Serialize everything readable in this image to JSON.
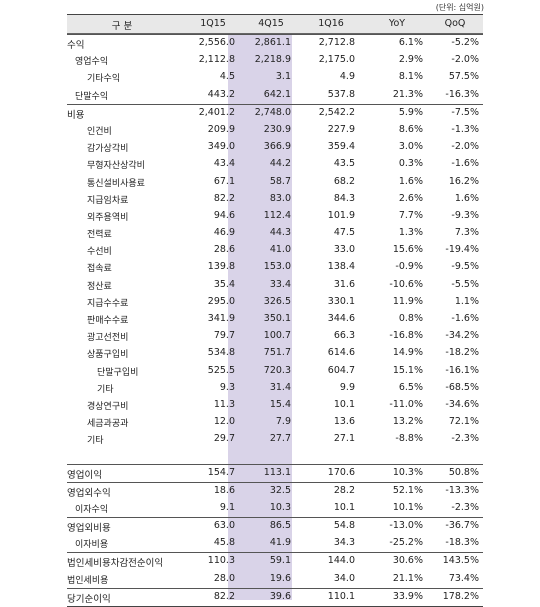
{
  "unit_label": "(단위: 십억원)",
  "headers": [
    "구 분",
    "1Q15",
    "4Q15",
    "1Q16",
    "YoY",
    "QoQ"
  ],
  "rows": [
    {
      "label": "수익",
      "level": 0,
      "main": true,
      "values": [
        "2,556.0",
        "2,861.1",
        "2,712.8",
        "6.1%",
        "-5.2%"
      ]
    },
    {
      "label": "영업수익",
      "level": 1,
      "values": [
        "2,112.8",
        "2,218.9",
        "2,175.0",
        "2.9%",
        "-2.0%"
      ]
    },
    {
      "label": "기타수익",
      "level": 2,
      "values": [
        "4.5",
        "3.1",
        "4.9",
        "8.1%",
        "57.5%"
      ]
    },
    {
      "label": "단말수익",
      "level": 1,
      "values": [
        "443.2",
        "642.1",
        "537.8",
        "21.3%",
        "-16.3%"
      ]
    },
    {
      "label": "비용",
      "level": 0,
      "main": true,
      "values": [
        "2,401.2",
        "2,748.0",
        "2,542.2",
        "5.9%",
        "-7.5%"
      ]
    },
    {
      "label": "인건비",
      "level": 2,
      "values": [
        "209.9",
        "230.9",
        "227.9",
        "8.6%",
        "-1.3%"
      ]
    },
    {
      "label": "감가상각비",
      "level": 2,
      "values": [
        "349.0",
        "366.9",
        "359.4",
        "3.0%",
        "-2.0%"
      ]
    },
    {
      "label": "무형자산상각비",
      "level": 2,
      "values": [
        "43.4",
        "44.2",
        "43.5",
        "0.3%",
        "-1.6%"
      ]
    },
    {
      "label": "통신설비사용료",
      "level": 2,
      "values": [
        "67.1",
        "58.7",
        "68.2",
        "1.6%",
        "16.2%"
      ]
    },
    {
      "label": "지급임차료",
      "level": 2,
      "values": [
        "82.2",
        "83.0",
        "84.3",
        "2.6%",
        "1.6%"
      ]
    },
    {
      "label": "외주용역비",
      "level": 2,
      "values": [
        "94.6",
        "112.4",
        "101.9",
        "7.7%",
        "-9.3%"
      ]
    },
    {
      "label": "전력료",
      "level": 2,
      "values": [
        "46.9",
        "44.3",
        "47.5",
        "1.3%",
        "7.3%"
      ]
    },
    {
      "label": "수선비",
      "level": 2,
      "values": [
        "28.6",
        "41.0",
        "33.0",
        "15.6%",
        "-19.4%"
      ]
    },
    {
      "label": "접속료",
      "level": 2,
      "values": [
        "139.8",
        "153.0",
        "138.4",
        "-0.9%",
        "-9.5%"
      ]
    },
    {
      "label": "정산료",
      "level": 2,
      "values": [
        "35.4",
        "33.4",
        "31.6",
        "-10.6%",
        "-5.5%"
      ]
    },
    {
      "label": "지급수수료",
      "level": 2,
      "values": [
        "295.0",
        "326.5",
        "330.1",
        "11.9%",
        "1.1%"
      ]
    },
    {
      "label": "판매수수료",
      "level": 2,
      "values": [
        "341.9",
        "350.1",
        "344.6",
        "0.8%",
        "-1.6%"
      ]
    },
    {
      "label": "광고선전비",
      "level": 2,
      "values": [
        "79.7",
        "100.7",
        "66.3",
        "-16.8%",
        "-34.2%"
      ]
    },
    {
      "label": "상품구입비",
      "level": 2,
      "values": [
        "534.8",
        "751.7",
        "614.6",
        "14.9%",
        "-18.2%"
      ]
    },
    {
      "label": "단말구입비",
      "level": 3,
      "values": [
        "525.5",
        "720.3",
        "604.7",
        "15.1%",
        "-16.1%"
      ]
    },
    {
      "label": "기타",
      "level": 3,
      "values": [
        "9.3",
        "31.4",
        "9.9",
        "6.5%",
        "-68.5%"
      ]
    },
    {
      "label": "경상연구비",
      "level": 2,
      "values": [
        "11.3",
        "15.4",
        "10.1",
        "-11.0%",
        "-34.6%"
      ]
    },
    {
      "label": "세금과공과",
      "level": 2,
      "values": [
        "12.0",
        "7.9",
        "13.6",
        "13.2%",
        "72.1%"
      ]
    },
    {
      "label": "기타",
      "level": 2,
      "values": [
        "29.7",
        "27.7",
        "27.1",
        "-8.8%",
        "-2.3%"
      ]
    },
    {
      "gap": true
    },
    {
      "label": "영업이익",
      "level": 0,
      "main": true,
      "values": [
        "154.7",
        "113.1",
        "170.6",
        "10.3%",
        "50.8%"
      ]
    },
    {
      "label": "영업외수익",
      "level": 0,
      "main": true,
      "values": [
        "18.6",
        "32.5",
        "28.2",
        "52.1%",
        "-13.3%"
      ]
    },
    {
      "label": "이자수익",
      "level": 1,
      "values": [
        "9.1",
        "10.3",
        "10.1",
        "10.1%",
        "-2.3%"
      ]
    },
    {
      "label": "영업외비용",
      "level": 0,
      "main": true,
      "values": [
        "63.0",
        "86.5",
        "54.8",
        "-13.0%",
        "-36.7%"
      ]
    },
    {
      "label": "이자비용",
      "level": 1,
      "values": [
        "45.8",
        "41.9",
        "34.3",
        "-25.2%",
        "-18.3%"
      ]
    },
    {
      "label": "법인세비용차감전순이익",
      "level": 0,
      "main": true,
      "values": [
        "110.3",
        "59.1",
        "144.0",
        "30.6%",
        "143.5%"
      ]
    },
    {
      "label": "법인세비용",
      "level": 0,
      "values": [
        "28.0",
        "19.6",
        "34.0",
        "21.1%",
        "73.4%"
      ]
    },
    {
      "label": "당기순이익",
      "level": 0,
      "main": true,
      "bottom": true,
      "values": [
        "82.2",
        "39.6",
        "110.1",
        "33.9%",
        "178.2%"
      ]
    }
  ]
}
